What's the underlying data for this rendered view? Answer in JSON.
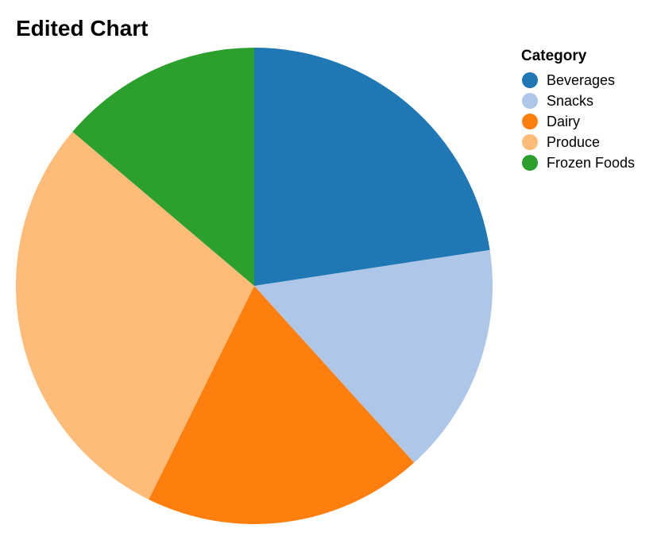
{
  "chart_data": {
    "type": "pie",
    "title": "Edited Chart",
    "legend_title": "Category",
    "legend_position": "top-right",
    "categories": [
      "Beverages",
      "Snacks",
      "Dairy",
      "Produce",
      "Frozen Foods"
    ],
    "values": [
      22.6,
      15.7,
      19.0,
      28.9,
      13.8
    ],
    "colors": [
      "#1f77b4",
      "#aec7e8",
      "#ff7f0e",
      "#ffbb78",
      "#2ca02c"
    ]
  }
}
